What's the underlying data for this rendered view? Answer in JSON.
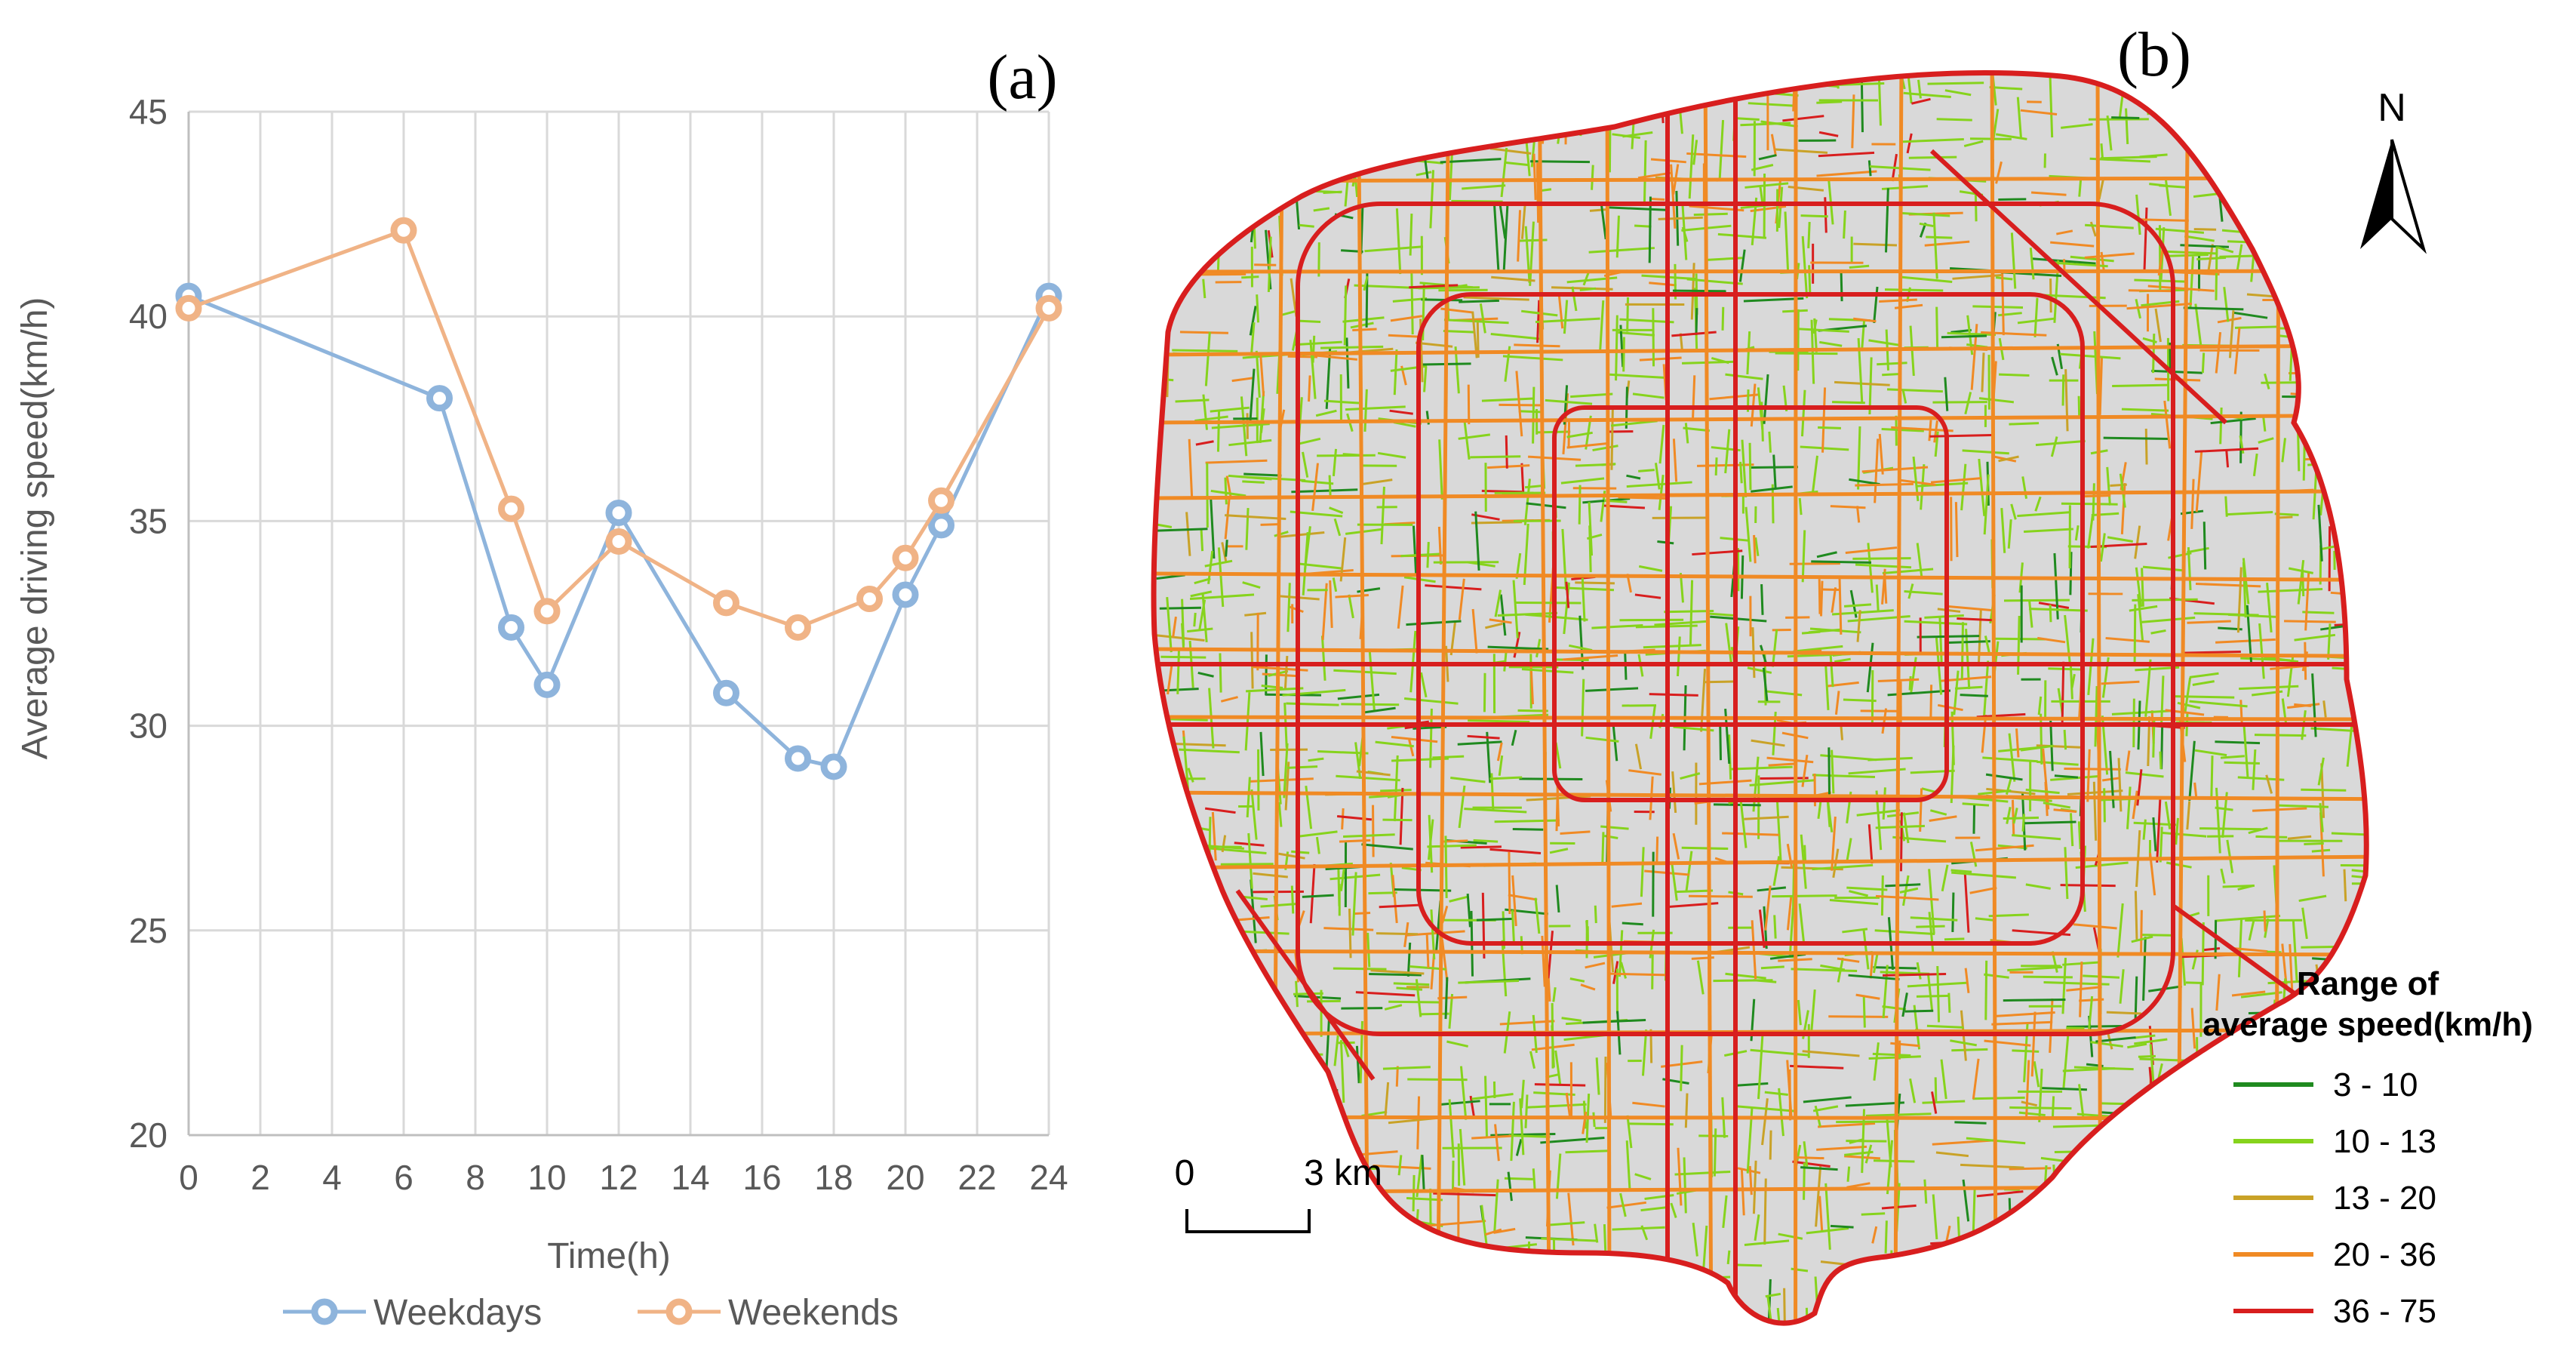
{
  "chart_data": [
    {
      "type": "line",
      "panel_label": "(a)",
      "xlabel": "Time(h)",
      "ylabel": "Average driving speed(km/h)",
      "xlim": [
        0,
        24
      ],
      "ylim": [
        20,
        45
      ],
      "xticks": [
        0,
        2,
        4,
        6,
        8,
        10,
        12,
        14,
        16,
        18,
        20,
        22,
        24
      ],
      "yticks": [
        20,
        25,
        30,
        35,
        40,
        45
      ],
      "grid": true,
      "legend_position": "bottom",
      "series": [
        {
          "name": "Weekdays",
          "color": "#8EB4DC",
          "x": [
            0,
            7,
            9,
            10,
            12,
            15,
            17,
            18,
            20,
            21,
            24
          ],
          "y": [
            40.5,
            38.0,
            32.4,
            31.0,
            35.2,
            30.8,
            29.2,
            29.0,
            33.2,
            34.9,
            40.5
          ]
        },
        {
          "name": "Weekends",
          "color": "#F0B386",
          "x": [
            0,
            6,
            9,
            10,
            12,
            15,
            17,
            19,
            20,
            21,
            24
          ],
          "y": [
            40.2,
            42.1,
            35.3,
            32.8,
            34.5,
            33.0,
            32.4,
            33.1,
            34.1,
            35.5,
            40.2
          ]
        }
      ]
    }
  ],
  "map": {
    "panel_label": "(b)",
    "north_label": "N",
    "scale_labels": [
      "0",
      "3 km"
    ],
    "legend_title": [
      "Range of",
      "average speed(km/h)"
    ],
    "legend_items": [
      {
        "label": "3 - 10",
        "color": "#1F8A1F"
      },
      {
        "label": "10 - 13",
        "color": "#86D31C"
      },
      {
        "label": "13 - 20",
        "color": "#C9A227"
      },
      {
        "label": "20 - 36",
        "color": "#F08A24"
      },
      {
        "label": "36 - 75",
        "color": "#D81E1E"
      }
    ],
    "background_color": "#D9D9D9"
  }
}
